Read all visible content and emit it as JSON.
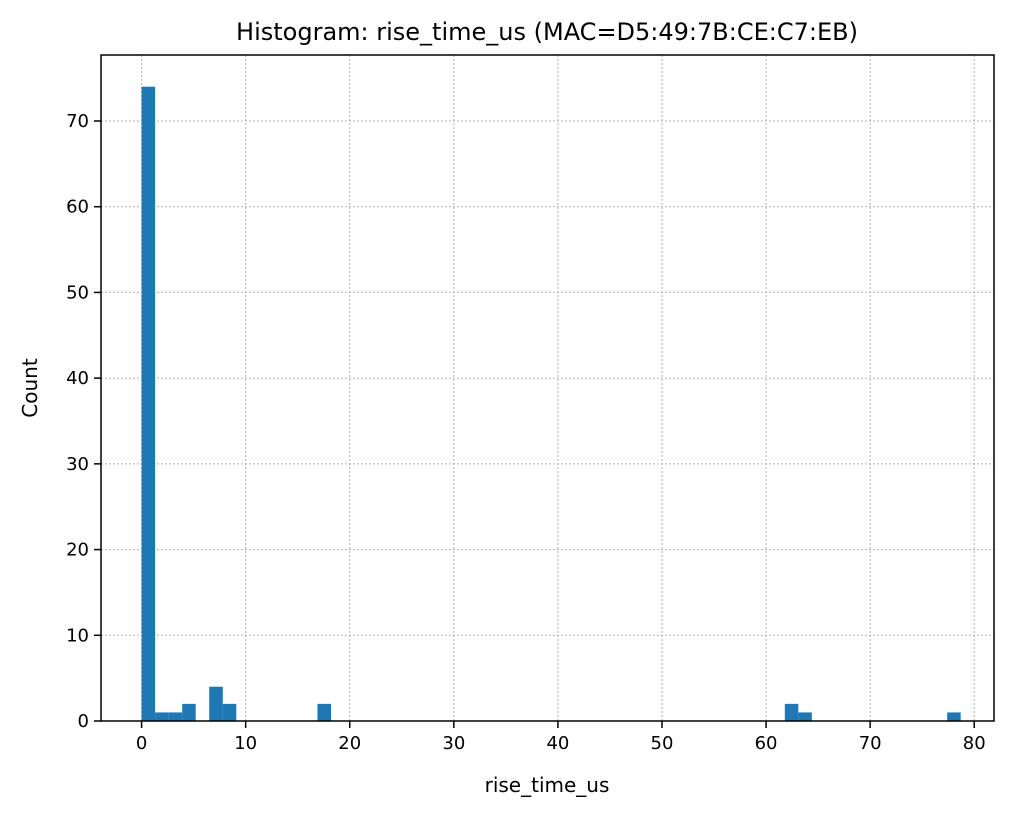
{
  "chart_data": {
    "type": "bar",
    "title": "Histogram: rise_time_us (MAC=D5:49:7B:CE:C7:EB)",
    "xlabel": "rise_time_us",
    "ylabel": "Count",
    "xlim": [
      -3.9,
      81.9
    ],
    "ylim": [
      0,
      77.7
    ],
    "x_ticks": [
      0,
      10,
      20,
      30,
      40,
      50,
      60,
      70,
      80
    ],
    "y_ticks": [
      0,
      10,
      20,
      30,
      40,
      50,
      60,
      70
    ],
    "grid": true,
    "bin_width": 1.3,
    "bars": [
      {
        "x0": 0.0,
        "x1": 1.3,
        "count": 74
      },
      {
        "x0": 1.3,
        "x1": 2.6,
        "count": 1
      },
      {
        "x0": 2.6,
        "x1": 3.9,
        "count": 1
      },
      {
        "x0": 3.9,
        "x1": 5.2,
        "count": 2
      },
      {
        "x0": 6.5,
        "x1": 7.8,
        "count": 4
      },
      {
        "x0": 7.8,
        "x1": 9.1,
        "count": 2
      },
      {
        "x0": 16.9,
        "x1": 18.2,
        "count": 2
      },
      {
        "x0": 61.8,
        "x1": 63.1,
        "count": 2
      },
      {
        "x0": 63.1,
        "x1": 64.4,
        "count": 1
      },
      {
        "x0": 77.4,
        "x1": 78.7,
        "count": 1
      }
    ],
    "colors": {
      "bar": "#1f77b4"
    }
  }
}
